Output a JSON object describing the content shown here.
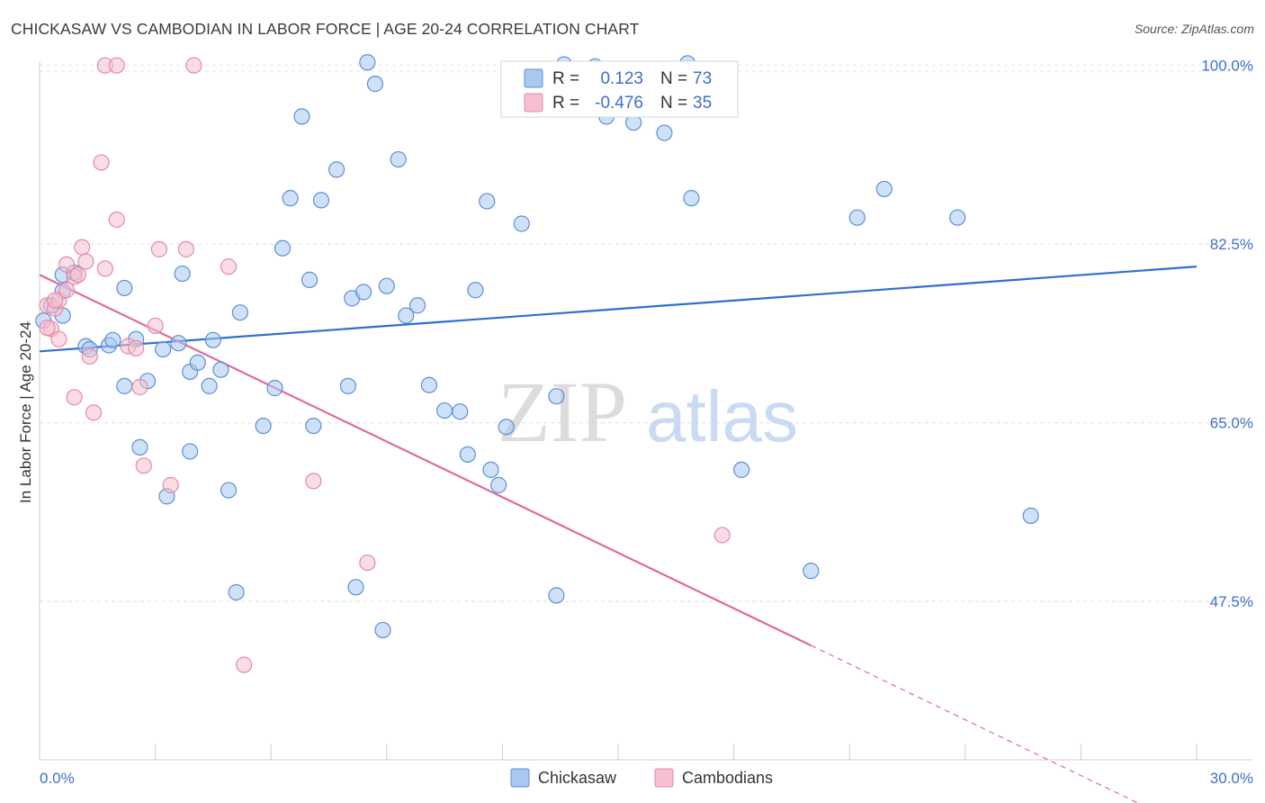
{
  "title": "CHICKASAW VS CAMBODIAN IN LABOR FORCE | AGE 20-24 CORRELATION CHART",
  "source": "Source: ZipAtlas.com",
  "watermark": {
    "zip": "ZIP",
    "atlas": "atlas"
  },
  "legend": {
    "rows": [
      {
        "r_label": "R =",
        "r_value": "0.123",
        "n_label": "N =",
        "n_value": "73",
        "color": "#a8c8f0",
        "stroke": "#5d8fd6"
      },
      {
        "r_label": "R =",
        "r_value": "-0.476",
        "n_label": "N =",
        "n_value": "35",
        "color": "#f6c0d0",
        "stroke": "#e58aa8"
      }
    ]
  },
  "bottom_legend": [
    {
      "label": "Chickasaw",
      "color": "#a8c8f0",
      "stroke": "#5d8fd6"
    },
    {
      "label": "Cambodians",
      "color": "#f6c0d0",
      "stroke": "#e58aa8"
    }
  ],
  "chart_data": {
    "type": "scatter",
    "title": "CHICKASAW VS CAMBODIAN IN LABOR FORCE | AGE 20-24 CORRELATION CHART",
    "xlabel": "",
    "ylabel": "In Labor Force | Age 20-24",
    "xlim": [
      0,
      30
    ],
    "ylim": [
      32,
      102
    ],
    "x_tick_labels": [
      "0.0%",
      "30.0%"
    ],
    "y_ticks": [
      47.5,
      65.0,
      82.5,
      100.0
    ],
    "y_tick_labels": [
      "47.5%",
      "65.0%",
      "82.5%",
      "100.0%"
    ],
    "grid": true,
    "series": [
      {
        "name": "Chickasaw",
        "color": "#5d8fd6",
        "fill": "#a8c8f0",
        "trend": {
          "x0": 0,
          "y0": 72.0,
          "x1": 30,
          "y1": 80.3,
          "color": "#2f6fcf"
        },
        "points": [
          [
            0.3,
            76.5
          ],
          [
            0.6,
            75.5
          ],
          [
            0.6,
            77.9
          ],
          [
            0.6,
            79.5
          ],
          [
            0.9,
            79.7
          ],
          [
            1.2,
            72.5
          ],
          [
            1.3,
            72.2
          ],
          [
            1.8,
            72.6
          ],
          [
            1.9,
            73.1
          ],
          [
            2.2,
            78.2
          ],
          [
            2.5,
            73.2
          ],
          [
            2.2,
            68.6
          ],
          [
            2.8,
            69.1
          ],
          [
            2.6,
            62.6
          ],
          [
            3.2,
            72.2
          ],
          [
            3.6,
            72.8
          ],
          [
            3.7,
            79.6
          ],
          [
            3.9,
            70.0
          ],
          [
            4.1,
            70.9
          ],
          [
            4.4,
            68.6
          ],
          [
            4.5,
            73.1
          ],
          [
            4.7,
            70.2
          ],
          [
            4.9,
            58.4
          ],
          [
            5.2,
            75.8
          ],
          [
            5.8,
            64.7
          ],
          [
            6.1,
            68.4
          ],
          [
            6.3,
            82.1
          ],
          [
            6.5,
            87.0
          ],
          [
            6.8,
            95.0
          ],
          [
            7.0,
            79.0
          ],
          [
            7.1,
            64.7
          ],
          [
            7.3,
            86.8
          ],
          [
            7.7,
            89.8
          ],
          [
            8.0,
            68.6
          ],
          [
            8.1,
            77.2
          ],
          [
            8.4,
            77.8
          ],
          [
            8.9,
            44.7
          ],
          [
            8.2,
            48.9
          ],
          [
            5.1,
            48.4
          ],
          [
            3.3,
            57.8
          ],
          [
            3.9,
            62.2
          ],
          [
            8.5,
            100.3
          ],
          [
            8.7,
            98.2
          ],
          [
            9.0,
            78.4
          ],
          [
            9.3,
            90.8
          ],
          [
            9.5,
            75.5
          ],
          [
            9.8,
            76.5
          ],
          [
            10.1,
            68.7
          ],
          [
            10.5,
            66.2
          ],
          [
            10.9,
            66.1
          ],
          [
            11.1,
            61.9
          ],
          [
            11.3,
            78.0
          ],
          [
            11.6,
            86.7
          ],
          [
            11.7,
            60.4
          ],
          [
            11.9,
            58.9
          ],
          [
            12.1,
            64.6
          ],
          [
            12.5,
            84.5
          ],
          [
            13.4,
            48.1
          ],
          [
            13.4,
            67.6
          ],
          [
            14.4,
            99.9
          ],
          [
            14.7,
            95.0
          ],
          [
            15.4,
            94.4
          ],
          [
            16.2,
            93.4
          ],
          [
            16.9,
            87.0
          ],
          [
            18.2,
            60.4
          ],
          [
            20.0,
            50.5
          ],
          [
            21.2,
            85.1
          ],
          [
            21.9,
            87.9
          ],
          [
            23.8,
            85.1
          ],
          [
            25.7,
            55.9
          ],
          [
            0.1,
            75.0
          ],
          [
            16.8,
            100.2
          ],
          [
            13.6,
            100.1
          ]
        ]
      },
      {
        "name": "Cambodians",
        "color": "#e58aa8",
        "fill": "#f6c0d0",
        "trend": {
          "x0": 0,
          "y0": 79.5,
          "x1": 20.0,
          "y1": 43.2,
          "color": "#e0699a",
          "dash_to": {
            "x": 30,
            "y": 25.0
          }
        },
        "points": [
          [
            0.2,
            76.5
          ],
          [
            0.3,
            74.2
          ],
          [
            0.4,
            76.2
          ],
          [
            0.5,
            73.2
          ],
          [
            0.5,
            77.0
          ],
          [
            0.7,
            78.0
          ],
          [
            0.7,
            80.5
          ],
          [
            0.9,
            79.3
          ],
          [
            0.9,
            67.5
          ],
          [
            1.1,
            82.2
          ],
          [
            1.2,
            80.8
          ],
          [
            1.3,
            71.5
          ],
          [
            1.4,
            66.0
          ],
          [
            1.6,
            90.5
          ],
          [
            1.7,
            80.1
          ],
          [
            1.7,
            100.0
          ],
          [
            2.0,
            84.9
          ],
          [
            2.0,
            100.0
          ],
          [
            2.3,
            72.5
          ],
          [
            2.5,
            72.3
          ],
          [
            2.6,
            68.5
          ],
          [
            2.7,
            60.8
          ],
          [
            3.0,
            74.5
          ],
          [
            3.1,
            82.0
          ],
          [
            3.4,
            58.9
          ],
          [
            3.8,
            82.0
          ],
          [
            4.0,
            100.0
          ],
          [
            4.9,
            80.3
          ],
          [
            5.3,
            41.3
          ],
          [
            7.1,
            59.3
          ],
          [
            8.5,
            51.3
          ],
          [
            17.7,
            54.0
          ],
          [
            0.4,
            77.0
          ],
          [
            1.0,
            79.5
          ],
          [
            0.2,
            74.3
          ]
        ]
      }
    ]
  }
}
